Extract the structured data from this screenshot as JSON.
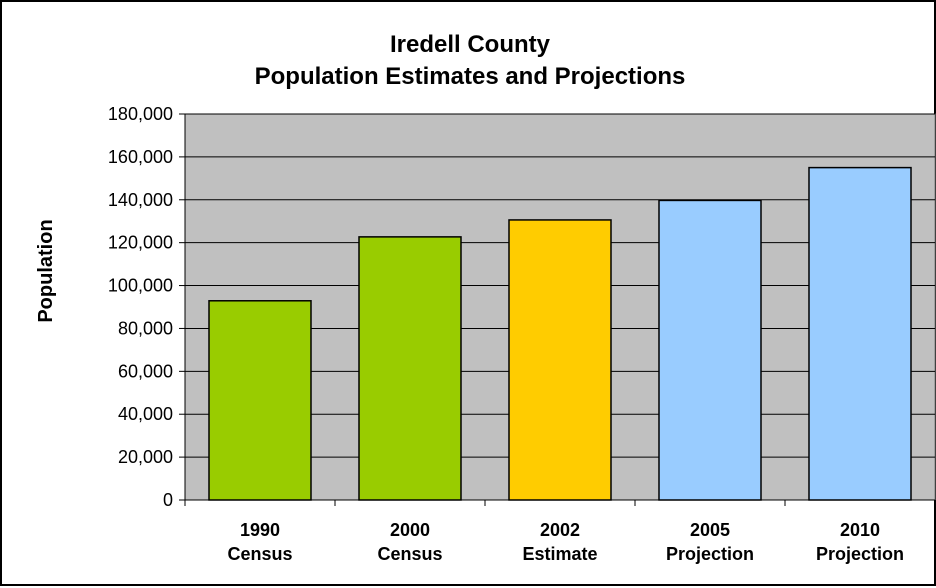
{
  "chart_data": {
    "type": "bar",
    "title": [
      "Iredell County",
      "Population Estimates and Projections"
    ],
    "xlabel": "",
    "ylabel": "Population",
    "ylim": [
      0,
      180000
    ],
    "yticks": [
      0,
      20000,
      40000,
      60000,
      80000,
      100000,
      120000,
      140000,
      160000,
      180000
    ],
    "ytick_labels": [
      "0",
      "20,000",
      "40,000",
      "60,000",
      "80,000",
      "100,000",
      "120,000",
      "140,000",
      "160,000",
      "180,000"
    ],
    "grid": true,
    "plot_background": "#C0C0C0",
    "categories": [
      [
        "1990",
        "Census"
      ],
      [
        "2000",
        "Census"
      ],
      [
        "2002",
        "Estimate"
      ],
      [
        "2005",
        "Projection"
      ],
      [
        "2010",
        "Projection"
      ]
    ],
    "values": [
      92900,
      122700,
      130600,
      139700,
      155000
    ],
    "bar_colors": [
      "#99CC00",
      "#99CC00",
      "#FFCC00",
      "#99CCFF",
      "#99CCFF"
    ]
  }
}
